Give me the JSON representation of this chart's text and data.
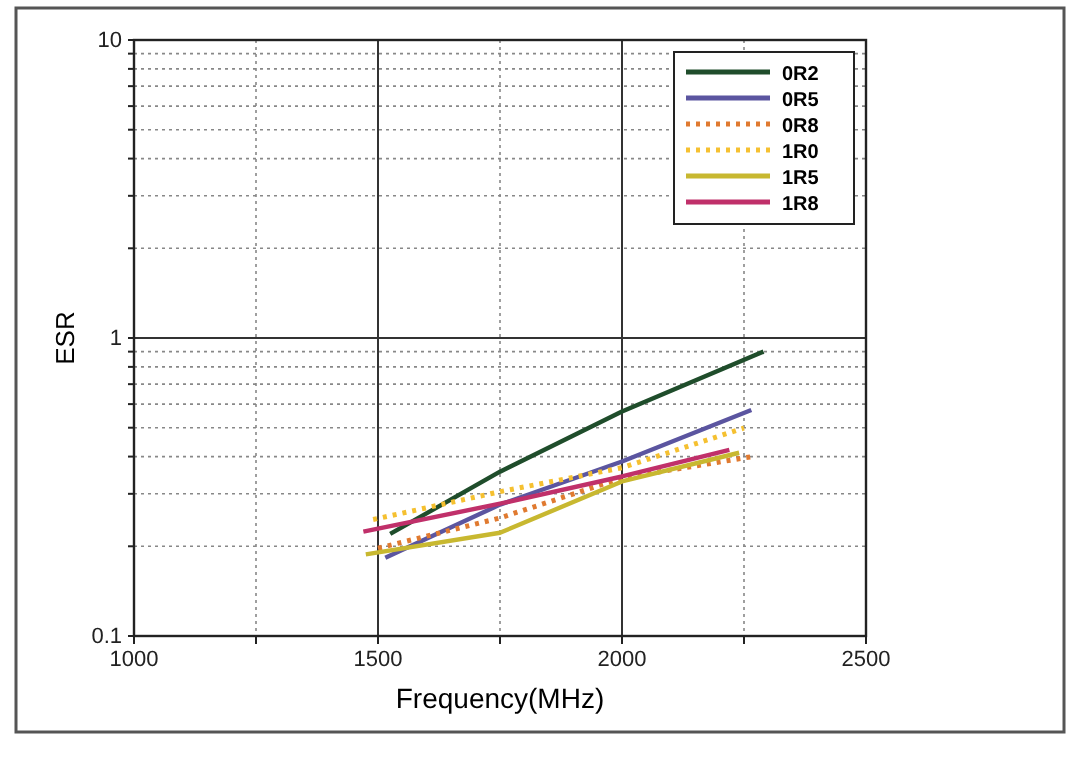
{
  "chart_data": {
    "type": "line",
    "xlabel": "Frequency(MHz)",
    "ylabel": "ESR",
    "log": "y",
    "grid": true,
    "legend": "top right",
    "xlim": [
      1000,
      2500
    ],
    "ylim": [
      0.1,
      10
    ],
    "xticks": [
      1000,
      {
        "value": 1250,
        "label": null
      },
      1500,
      {
        "value": 1750,
        "label": null
      },
      2000,
      {
        "value": 2250,
        "label": null
      },
      2500
    ],
    "yticks": [
      0.1,
      {
        "value": 0.2,
        "label": null
      },
      {
        "value": 0.3,
        "label": null
      },
      {
        "value": 0.4,
        "label": null
      },
      {
        "value": 0.5,
        "label": null
      },
      {
        "value": 0.6,
        "label": null
      },
      {
        "value": 0.7,
        "label": null
      },
      {
        "value": 0.8,
        "label": null
      },
      {
        "value": 0.9,
        "label": null
      },
      1,
      {
        "value": 2,
        "label": null
      },
      {
        "value": 3,
        "label": null
      },
      {
        "value": 4,
        "label": null
      },
      {
        "value": 5,
        "label": null
      },
      {
        "value": 6,
        "label": null
      },
      {
        "value": 7,
        "label": null
      },
      {
        "value": 8,
        "label": null
      },
      {
        "value": 9,
        "label": null
      },
      10
    ],
    "series": [
      {
        "name": "0R2",
        "color": "#1f4d2b",
        "line_style": "solid",
        "x": [
          1525,
          1750,
          2000,
          2290
        ],
        "values": [
          0.22,
          0.356,
          0.567,
          0.9
        ]
      },
      {
        "name": "0R5",
        "color": "#5b55a0",
        "line_style": "solid",
        "x": [
          1515,
          1750,
          2000,
          2265
        ],
        "values": [
          0.183,
          0.276,
          0.385,
          0.573
        ]
      },
      {
        "name": "0R8",
        "color": "#e07a30",
        "line_style": "dotted",
        "x": [
          1500,
          1750,
          2000,
          2275
        ],
        "values": [
          0.197,
          0.249,
          0.339,
          0.402
        ]
      },
      {
        "name": "1R0",
        "color": "#f5c030",
        "line_style": "dotted",
        "x": [
          1490,
          1750,
          2000,
          2250
        ],
        "values": [
          0.246,
          0.305,
          0.367,
          0.499
        ]
      },
      {
        "name": "1R5",
        "color": "#c8b830",
        "line_style": "solid",
        "x": [
          1475,
          1750,
          2000,
          2240
        ],
        "values": [
          0.188,
          0.222,
          0.33,
          0.412
        ]
      },
      {
        "name": "1R8",
        "color": "#c0306a",
        "line_style": "solid",
        "x": [
          1470,
          1750,
          2000,
          2220
        ],
        "values": [
          0.224,
          0.278,
          0.343,
          0.421
        ]
      }
    ]
  }
}
